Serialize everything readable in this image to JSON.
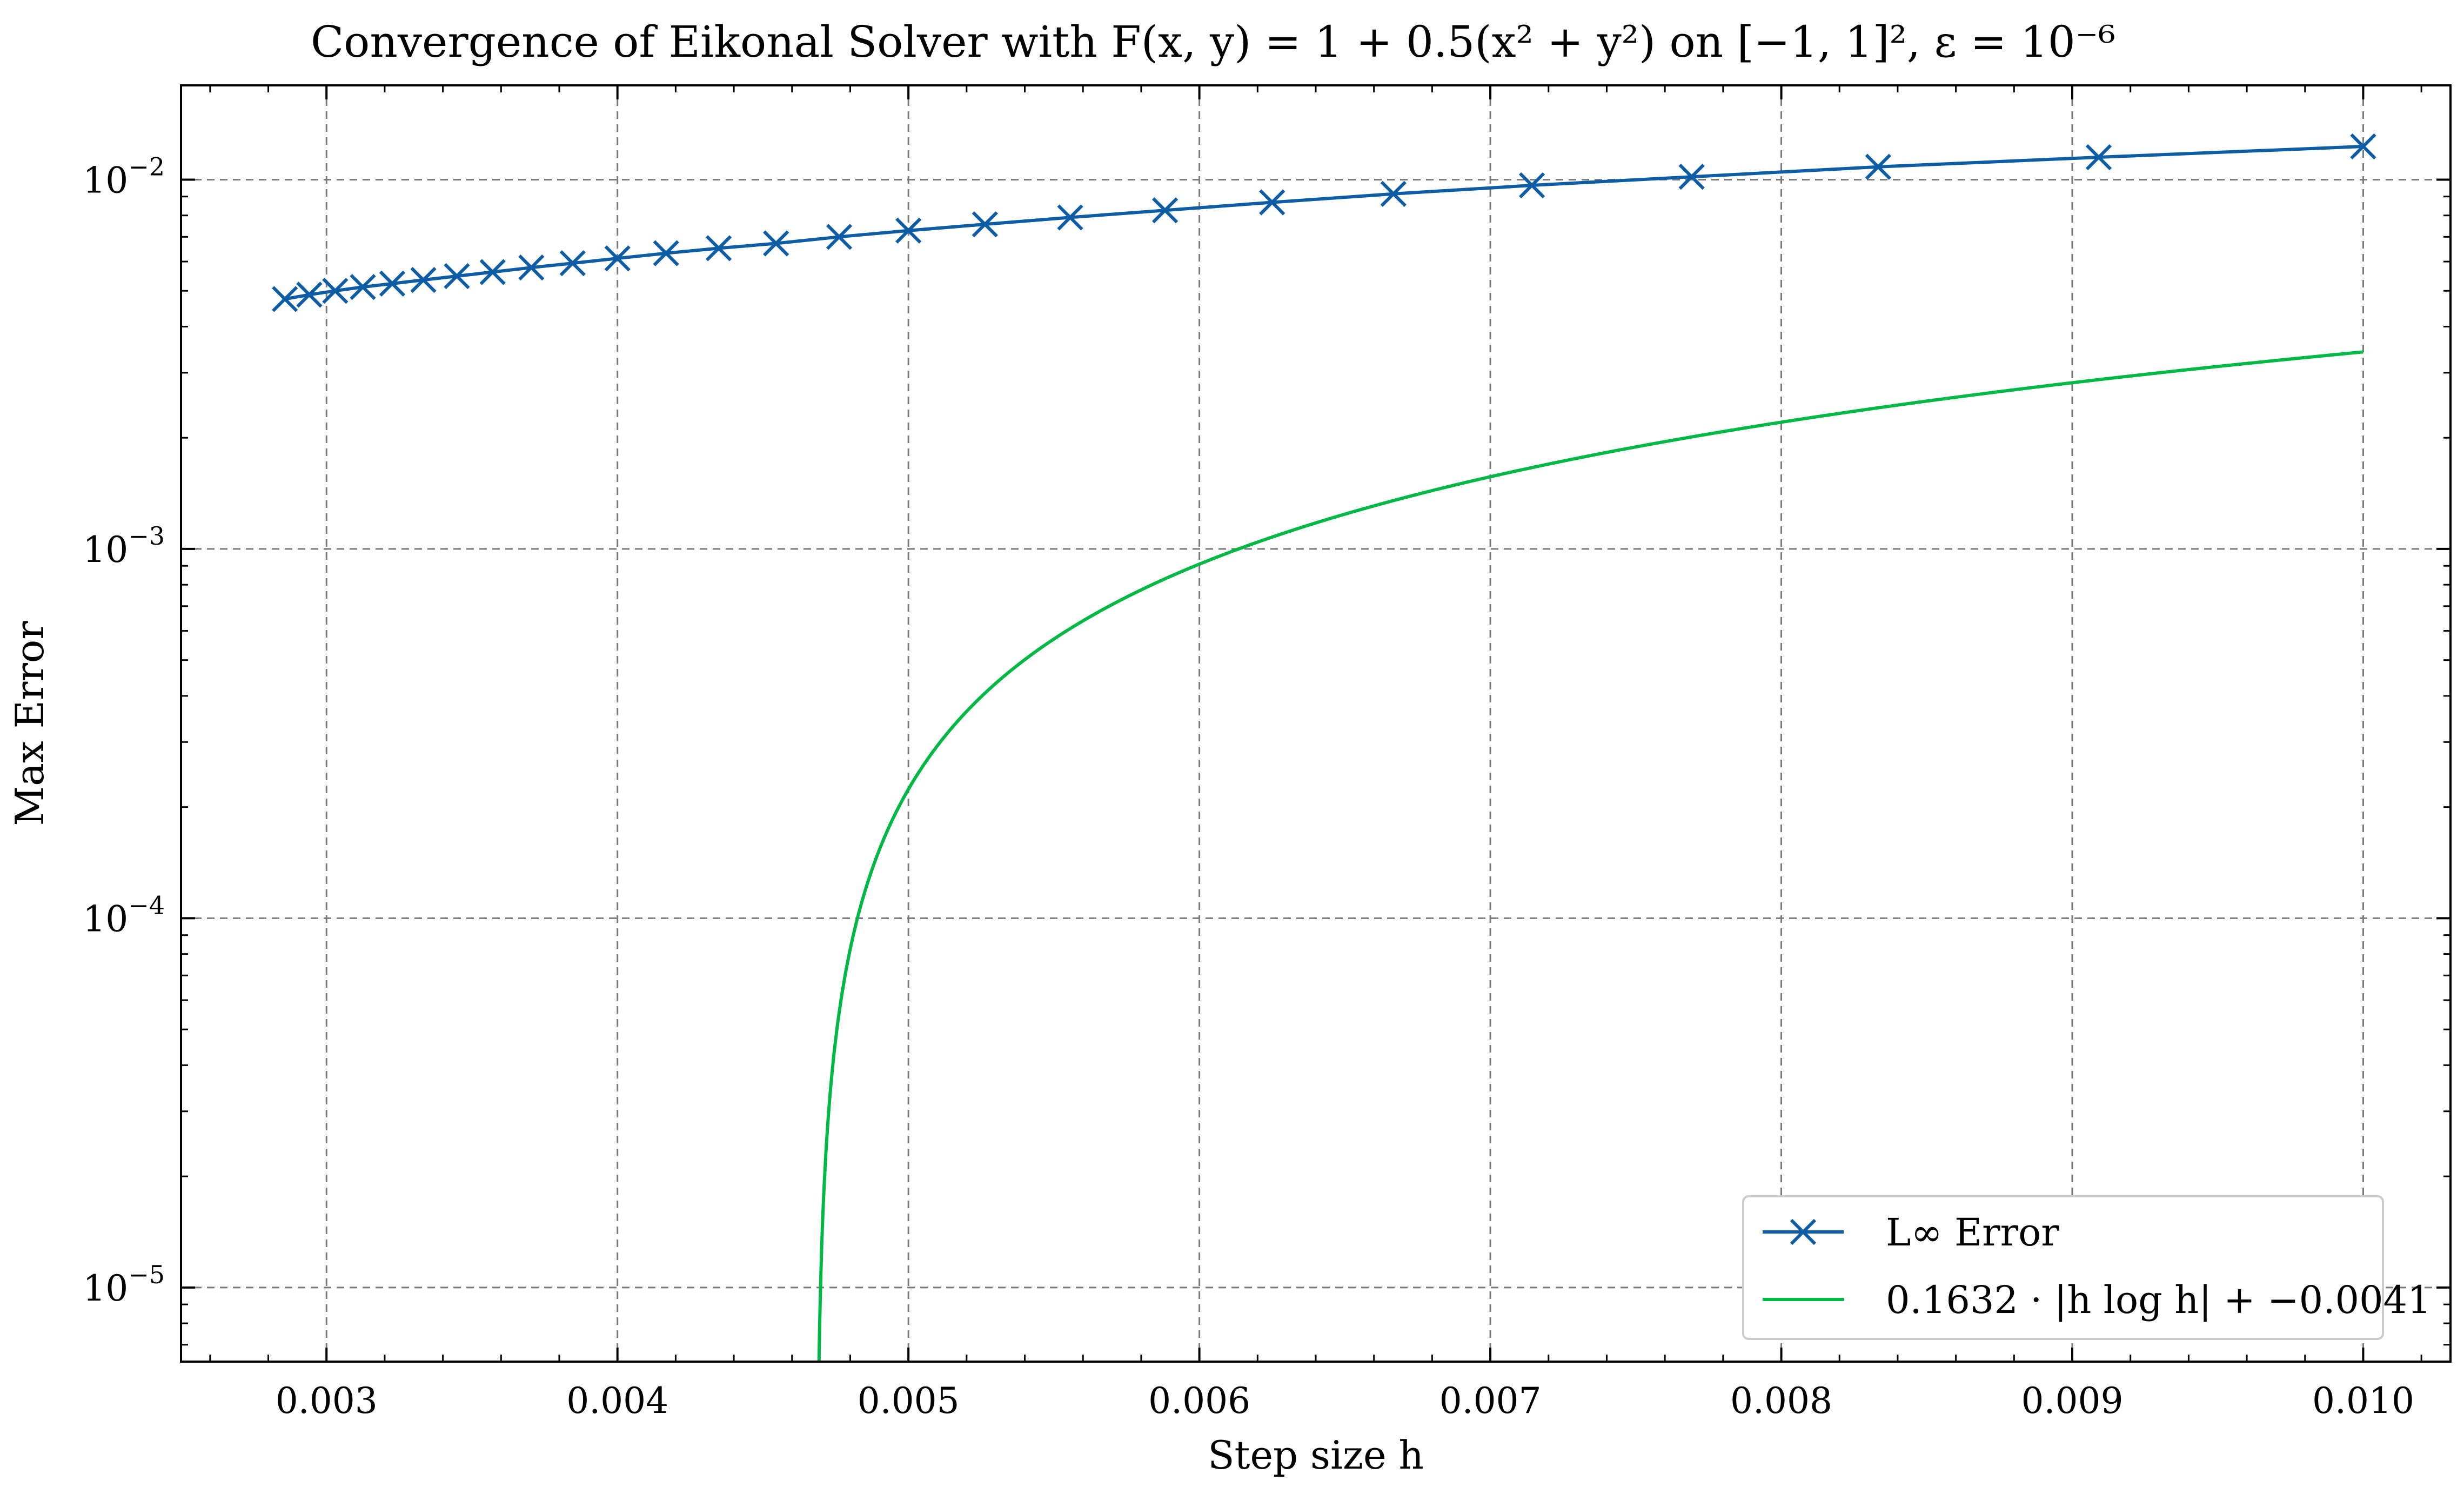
{
  "chart_data": {
    "type": "line",
    "title": "Convergence of Eikonal Solver with F(x, y) = 1 + 0.5(x² + y²) on [−1, 1]², ε = 10⁻⁶",
    "xlabel": "Step size h",
    "ylabel": "Max Error",
    "xlim": [
      0.0025,
      0.0103
    ],
    "ylim": [
      6.3e-06,
      0.018
    ],
    "yscale": "log",
    "grid": true,
    "legend_position": "bottom-right",
    "x_ticks": [
      {
        "value": 0.003,
        "label": "0.003"
      },
      {
        "value": 0.004,
        "label": "0.004"
      },
      {
        "value": 0.005,
        "label": "0.005"
      },
      {
        "value": 0.006,
        "label": "0.006"
      },
      {
        "value": 0.007,
        "label": "0.007"
      },
      {
        "value": 0.008,
        "label": "0.008"
      },
      {
        "value": 0.009,
        "label": "0.009"
      },
      {
        "value": 0.01,
        "label": "0.010"
      }
    ],
    "y_ticks": [
      {
        "value": 0.01,
        "base": "10",
        "exp": "−2"
      },
      {
        "value": 0.001,
        "base": "10",
        "exp": "−3"
      },
      {
        "value": 0.0001,
        "base": "10",
        "exp": "−4"
      },
      {
        "value": 1e-05,
        "base": "10",
        "exp": "−5"
      }
    ],
    "series": [
      {
        "name": "L∞ Error",
        "color": "#0C5DA5",
        "marker": "x",
        "x": [
          0.002857,
          0.002941,
          0.00303,
          0.003125,
          0.003226,
          0.003333,
          0.003448,
          0.003571,
          0.003704,
          0.003846,
          0.004,
          0.004167,
          0.004348,
          0.004545,
          0.004762,
          0.005,
          0.005263,
          0.005556,
          0.005882,
          0.00625,
          0.006667,
          0.007143,
          0.007692,
          0.008333,
          0.009091,
          0.01
        ],
        "y": [
          0.00475,
          0.00488,
          0.005,
          0.00512,
          0.00523,
          0.00535,
          0.00548,
          0.00562,
          0.00578,
          0.00594,
          0.00612,
          0.00632,
          0.00652,
          0.00672,
          0.007,
          0.00728,
          0.00757,
          0.0079,
          0.00826,
          0.00868,
          0.00915,
          0.00965,
          0.01018,
          0.01083,
          0.0115,
          0.0123
        ]
      },
      {
        "name": "0.1632 · |h log h| + −0.0041",
        "color": "#00B945",
        "marker": "none",
        "formula": {
          "a": 0.1632,
          "b": -0.0041
        }
      }
    ]
  }
}
